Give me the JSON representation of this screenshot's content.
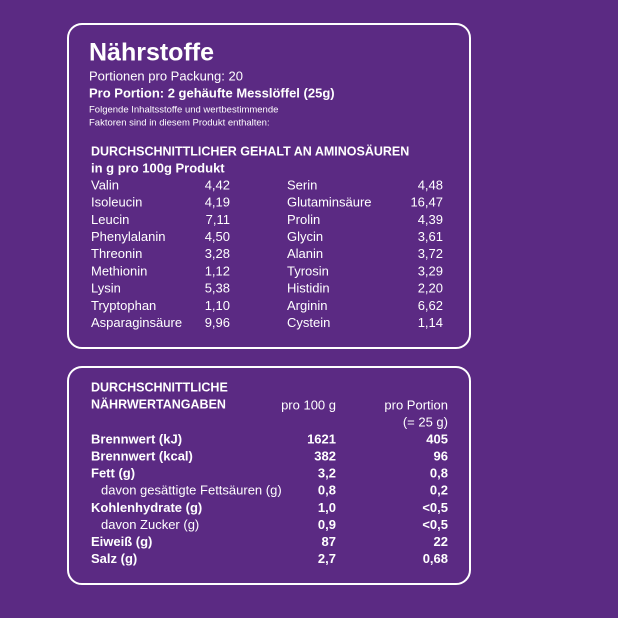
{
  "header": {
    "title": "Nährstoffe",
    "servings": "Portionen pro Packung: 20",
    "portion": "Pro Portion: 2 gehäufte Messlöffel (25g)",
    "note": [
      "Folgende Inhaltsstoffe und wertbestimmende",
      "Faktoren sind in diesem Produkt enthalten:"
    ]
  },
  "amino": {
    "title": "DURCHSCHNITTLICHER GEHALT AN AMINOSÄUREN",
    "subtitle": "in g pro 100g Produkt",
    "rows": [
      [
        "Valin",
        "4,42",
        "Serin",
        "4,48"
      ],
      [
        "Isoleucin",
        "4,19",
        "Glutaminsäure",
        "16,47"
      ],
      [
        "Leucin",
        "7,11",
        "Prolin",
        "4,39"
      ],
      [
        "Phenylalanin",
        "4,50",
        "Glycin",
        "3,61"
      ],
      [
        "Threonin",
        "3,28",
        "Alanin",
        "3,72"
      ],
      [
        "Methionin",
        "1,12",
        "Tyrosin",
        "3,29"
      ],
      [
        "Lysin",
        "5,38",
        "Histidin",
        "2,20"
      ],
      [
        "Tryptophan",
        "1,10",
        "Arginin",
        "6,62"
      ],
      [
        "Asparaginsäure",
        "9,96",
        "Cystein",
        "1,14"
      ]
    ]
  },
  "nutrition": {
    "title": [
      "DURCHSCHNITTLICHE",
      "NÄHRWERTANGABEN"
    ],
    "columns": [
      "pro 100 g",
      "pro Portion",
      "(= 25 g)"
    ],
    "rows": [
      {
        "name": "Brennwert (kJ)",
        "per100": "1621",
        "portion": "405",
        "sub": false
      },
      {
        "name": "Brennwert (kcal)",
        "per100": "382",
        "portion": "96",
        "sub": false
      },
      {
        "name": "Fett (g)",
        "per100": "3,2",
        "portion": "0,8",
        "sub": false
      },
      {
        "name": "davon gesättigte Fettsäuren (g)",
        "per100": "0,8",
        "portion": "0,2",
        "sub": true
      },
      {
        "name": "Kohlenhydrate (g)",
        "per100": "1,0",
        "portion": "<0,5",
        "sub": false
      },
      {
        "name": "davon Zucker (g)",
        "per100": "0,9",
        "portion": "<0,5",
        "sub": true
      },
      {
        "name": "Eiweiß (g)",
        "per100": "87",
        "portion": "22",
        "sub": false
      },
      {
        "name": "Salz (g)",
        "per100": "2,7",
        "portion": "0,68",
        "sub": false
      }
    ]
  }
}
